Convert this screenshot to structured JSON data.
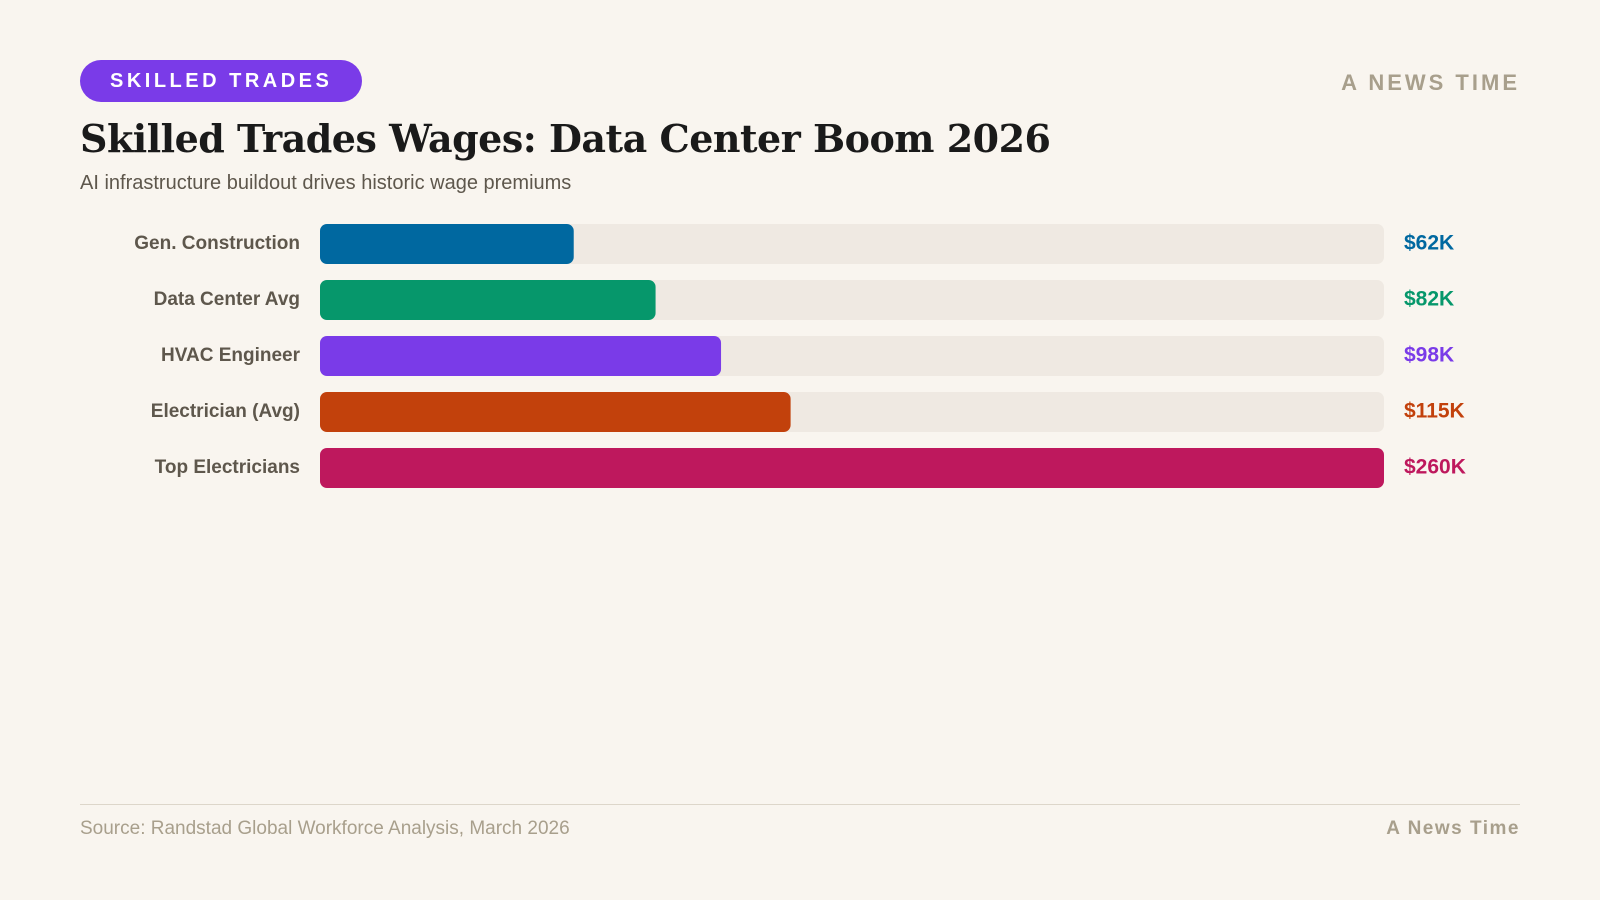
{
  "header": {
    "tag": "SKILLED TRADES",
    "brand": "A NEWS TIME"
  },
  "colors": {
    "tag_bg": "#7a3be8",
    "track": "#efe9e2",
    "background": "#f9f5ef"
  },
  "chart_data": {
    "type": "bar",
    "orientation": "horizontal",
    "title": "Skilled Trades Wages: Data Center Boom 2026",
    "subtitle": "AI infrastructure buildout drives historic wage premiums",
    "categories": [
      "Gen. Construction",
      "Data Center Avg",
      "HVAC Engineer",
      "Electrician (Avg)",
      "Top Electricians"
    ],
    "values": [
      62,
      82,
      98,
      115,
      260
    ],
    "value_labels": [
      "$62K",
      "$82K",
      "$98K",
      "$115K",
      "$260K"
    ],
    "colors": [
      "#0068a0",
      "#06976b",
      "#7a3be8",
      "#c2410c",
      "#be185d"
    ],
    "xlim": [
      0,
      260
    ],
    "grid": false,
    "legend": "none"
  },
  "footer": {
    "source": "Source: Randstad Global Workforce Analysis, March 2026",
    "brand": "A News Time"
  }
}
